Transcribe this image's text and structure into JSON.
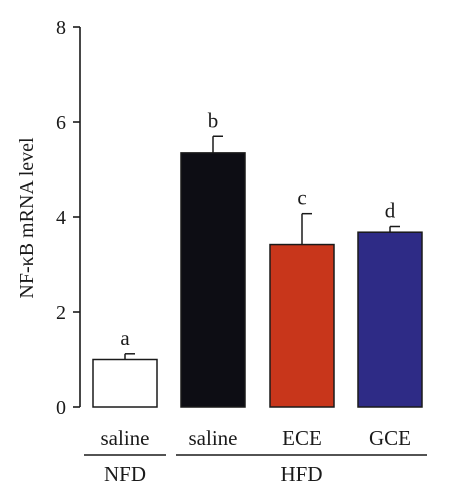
{
  "chart_data": {
    "type": "bar",
    "ylabel": "NF-κB mRNA level",
    "ylim": [
      0,
      8
    ],
    "yticks": [
      "0",
      "2",
      "4",
      "6",
      "8"
    ],
    "categories": [
      "saline",
      "saline",
      "ECE",
      "GCE"
    ],
    "groups": [
      {
        "label": "NFD",
        "span": [
          0,
          0
        ]
      },
      {
        "label": "HFD",
        "span": [
          1,
          3
        ]
      }
    ],
    "values": [
      1.0,
      5.35,
      3.42,
      3.68
    ],
    "errors": [
      0.12,
      0.35,
      0.65,
      0.12
    ],
    "significance": [
      "a",
      "b",
      "c",
      "d"
    ],
    "colors": [
      "#ffffff",
      "#0d0d14",
      "#c8361b",
      "#2e2b86"
    ],
    "grid": false,
    "legend": "none"
  }
}
